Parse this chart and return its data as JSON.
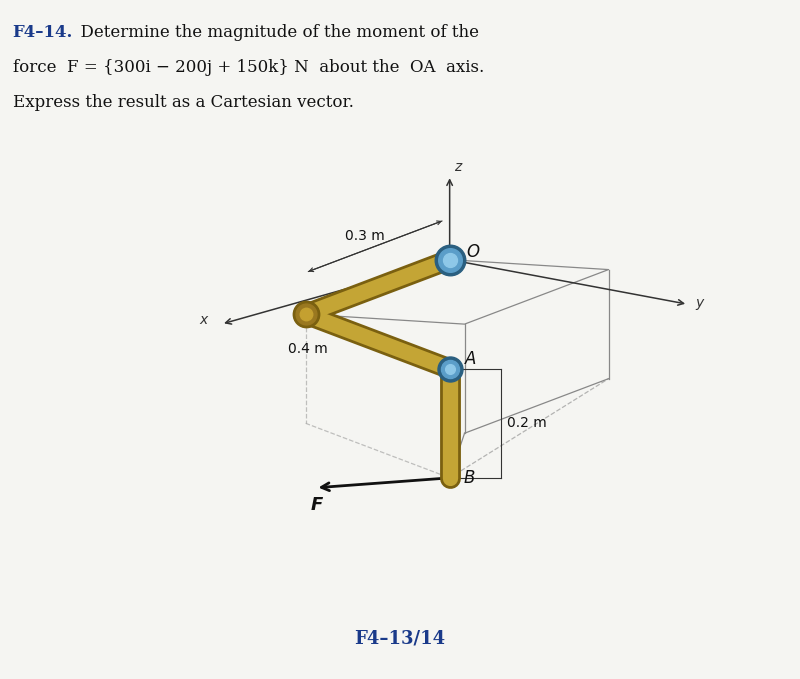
{
  "background_color": "#f5f5f2",
  "title_bold": "F4–14.",
  "title_rest_1": "  Determine the magnitude of the moment of the",
  "title_line2": "force  F = {300i − 200j + 150k} N  about the  OA  axis.",
  "title_line3": "Express the result as a Cartesian vector.",
  "caption": "F4–13/14",
  "caption_color": "#1a3a8a",
  "text_color": "#111111",
  "header_color": "#1a3a8a",
  "dim_03": "0.3 m",
  "dim_04": "0.4 m",
  "dim_02": "0.2 m",
  "label_O": "O",
  "label_A": "A",
  "label_B": "B",
  "label_F": "F",
  "label_x": "x",
  "label_y": "y",
  "label_z": "z",
  "pipe_color": "#c4a535",
  "pipe_shadow": "#7a6010",
  "joint_blue": "#5b9ec9",
  "joint_blue_light": "#8ec8e8",
  "joint_blue_dark": "#2a5f80",
  "elbow_color": "#9a7820",
  "box_color": "#888888",
  "axis_color": "#333333",
  "F_arrow_color": "#111111"
}
